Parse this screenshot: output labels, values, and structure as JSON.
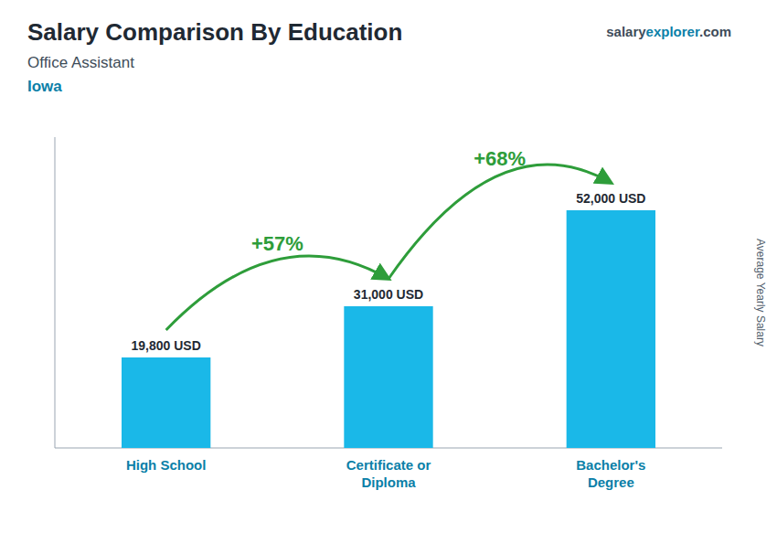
{
  "chart_data": {
    "type": "bar",
    "title": "Salary Comparison By Education",
    "subtitle": "Office Assistant",
    "annotations": [
      "Iowa",
      "salary",
      "explorer",
      ".com",
      "+57%",
      "+68%"
    ],
    "ylabel": "Average Yearly Salary",
    "categories": [
      "High School",
      "Certificate or\nDiploma",
      "Bachelor's\nDegree"
    ],
    "values": [
      19800,
      31000,
      52000
    ],
    "value_labels": [
      "19,800 USD",
      "31,000 USD",
      "52,000 USD"
    ],
    "data_labels": true,
    "color": "#1ab8e8",
    "ylim": [
      0,
      68000
    ],
    "tick_labels": "x",
    "grid": false
  }
}
